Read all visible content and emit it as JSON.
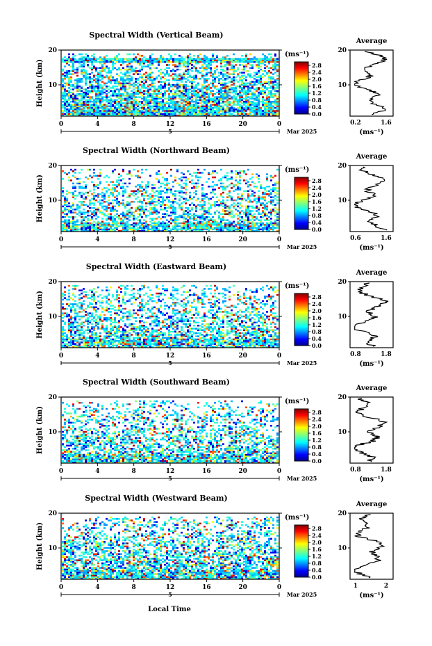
{
  "figure": {
    "xlabel": "Local Time",
    "date_label": "Mar 2025",
    "day_label": "5",
    "cbar_unit": "(ms⁻¹)",
    "avg_title": "Average",
    "avg_unit": "(ms⁻¹)",
    "ylabel": "Height (km)"
  },
  "chart_data": [
    {
      "type": "heatmap",
      "title": "Spectral Width (Vertical Beam)",
      "ylabel": "Height (km)",
      "xlim": [
        0,
        24
      ],
      "ylim": [
        1,
        20
      ],
      "xticks": [
        "0",
        "4",
        "8",
        "12",
        "16",
        "20",
        "0"
      ],
      "yticks": [
        "10",
        "20"
      ],
      "colorbar": {
        "unit": "(ms⁻¹)",
        "ticks": [
          "0.0",
          "0.4",
          "0.8",
          "1.2",
          "1.6",
          "2.0",
          "2.4",
          "2.8"
        ],
        "range": [
          0,
          3.0
        ]
      },
      "profile": {
        "title": "Average",
        "xlim": [
          0.2,
          1.6
        ],
        "xticks": [
          "0.2",
          "1.6"
        ],
        "ylim": [
          1,
          20
        ],
        "yticks": [
          "10",
          "20"
        ]
      }
    },
    {
      "type": "heatmap",
      "title": "Spectral Width (Northward Beam)",
      "ylabel": "Height (km)",
      "xlim": [
        0,
        24
      ],
      "ylim": [
        1,
        20
      ],
      "xticks": [
        "0",
        "4",
        "8",
        "12",
        "16",
        "20",
        "0"
      ],
      "yticks": [
        "10",
        "20"
      ],
      "colorbar": {
        "unit": "(ms⁻¹)",
        "ticks": [
          "0.0",
          "0.4",
          "0.8",
          "1.2",
          "1.6",
          "2.0",
          "2.4",
          "2.8"
        ],
        "range": [
          0,
          3.0
        ]
      },
      "profile": {
        "title": "Average",
        "xlim": [
          0.2,
          1.6
        ],
        "xticks": [
          "0.6",
          "1.6"
        ],
        "ylim": [
          1,
          20
        ],
        "yticks": [
          "10",
          "20"
        ]
      }
    },
    {
      "type": "heatmap",
      "title": "Spectral Width (Eastward Beam)",
      "ylabel": "Height (km)",
      "xlim": [
        0,
        24
      ],
      "ylim": [
        1,
        20
      ],
      "xticks": [
        "0",
        "4",
        "8",
        "12",
        "16",
        "20",
        "0"
      ],
      "yticks": [
        "10",
        "20"
      ],
      "colorbar": {
        "unit": "(ms⁻¹)",
        "ticks": [
          "0.0",
          "0.4",
          "0.8",
          "1.2",
          "1.6",
          "2.0",
          "2.4",
          "2.8"
        ],
        "range": [
          0,
          3.0
        ]
      },
      "profile": {
        "title": "Average",
        "xlim": [
          0.5,
          1.9
        ],
        "xticks": [
          "0.8",
          "1.8"
        ],
        "ylim": [
          1,
          20
        ],
        "yticks": [
          "10",
          "20"
        ]
      }
    },
    {
      "type": "heatmap",
      "title": "Spectral Width (Southward Beam)",
      "ylabel": "Height (km)",
      "xlim": [
        0,
        24
      ],
      "ylim": [
        1,
        20
      ],
      "xticks": [
        "0",
        "4",
        "8",
        "12",
        "16",
        "20",
        "0"
      ],
      "yticks": [
        "10",
        "20"
      ],
      "colorbar": {
        "unit": "(ms⁻¹)",
        "ticks": [
          "0.0",
          "0.4",
          "0.8",
          "1.2",
          "1.6",
          "2.0",
          "2.4",
          "2.8"
        ],
        "range": [
          0,
          3.0
        ]
      },
      "profile": {
        "title": "Average",
        "xlim": [
          0.5,
          1.9
        ],
        "xticks": [
          "0.8",
          "1.8"
        ],
        "ylim": [
          1,
          20
        ],
        "yticks": [
          "10",
          "20"
        ]
      }
    },
    {
      "type": "heatmap",
      "title": "Spectral Width (Westward Beam)",
      "ylabel": "Height (km)",
      "xlim": [
        0,
        24
      ],
      "ylim": [
        1,
        20
      ],
      "xticks": [
        "0",
        "4",
        "8",
        "12",
        "16",
        "20",
        "0"
      ],
      "yticks": [
        "10",
        "20"
      ],
      "colorbar": {
        "unit": "(ms⁻¹)",
        "ticks": [
          "0.0",
          "0.4",
          "0.8",
          "1.2",
          "1.6",
          "2.0",
          "2.4",
          "2.8"
        ],
        "range": [
          0,
          3.0
        ]
      },
      "profile": {
        "title": "Average",
        "xlim": [
          0.7,
          2.1
        ],
        "xticks": [
          "1",
          "2"
        ],
        "ylim": [
          1,
          20
        ],
        "yticks": [
          "10",
          "20"
        ]
      }
    }
  ]
}
